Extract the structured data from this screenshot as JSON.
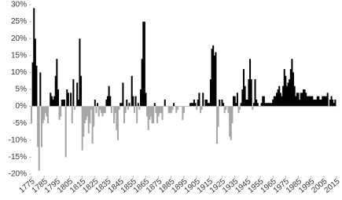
{
  "chart_data": {
    "type": "bar",
    "x": [
      1775,
      1776,
      1777,
      1778,
      1779,
      1780,
      1781,
      1782,
      1783,
      1784,
      1785,
      1786,
      1787,
      1788,
      1789,
      1790,
      1791,
      1792,
      1793,
      1794,
      1795,
      1796,
      1797,
      1798,
      1799,
      1800,
      1801,
      1802,
      1803,
      1804,
      1805,
      1806,
      1807,
      1808,
      1809,
      1810,
      1811,
      1812,
      1813,
      1814,
      1815,
      1816,
      1817,
      1818,
      1819,
      1820,
      1821,
      1822,
      1823,
      1824,
      1825,
      1826,
      1827,
      1828,
      1829,
      1830,
      1831,
      1832,
      1833,
      1834,
      1835,
      1836,
      1837,
      1838,
      1839,
      1840,
      1841,
      1842,
      1843,
      1844,
      1845,
      1846,
      1847,
      1848,
      1849,
      1850,
      1851,
      1852,
      1853,
      1854,
      1855,
      1856,
      1857,
      1858,
      1859,
      1860,
      1861,
      1862,
      1863,
      1864,
      1865,
      1866,
      1867,
      1868,
      1869,
      1870,
      1871,
      1872,
      1873,
      1874,
      1875,
      1876,
      1877,
      1878,
      1879,
      1880,
      1881,
      1882,
      1883,
      1884,
      1885,
      1886,
      1887,
      1888,
      1889,
      1890,
      1891,
      1892,
      1893,
      1894,
      1895,
      1896,
      1897,
      1898,
      1899,
      1900,
      1901,
      1902,
      1903,
      1904,
      1905,
      1906,
      1907,
      1908,
      1909,
      1910,
      1911,
      1912,
      1913,
      1914,
      1915,
      1916,
      1917,
      1918,
      1919,
      1920,
      1921,
      1922,
      1923,
      1924,
      1925,
      1926,
      1927,
      1928,
      1929,
      1930,
      1931,
      1932,
      1933,
      1934,
      1935,
      1936,
      1937,
      1938,
      1939,
      1940,
      1941,
      1942,
      1943,
      1944,
      1945,
      1946,
      1947,
      1948,
      1949,
      1950,
      1951,
      1952,
      1953,
      1954,
      1955,
      1956,
      1957,
      1958,
      1959,
      1960,
      1961,
      1962,
      1963,
      1964,
      1965,
      1966,
      1967,
      1968,
      1969,
      1970,
      1971,
      1972,
      1973,
      1974,
      1975,
      1976,
      1977,
      1978,
      1979,
      1980,
      1981,
      1982,
      1983,
      1984,
      1985,
      1986,
      1987,
      1988,
      1989,
      1990,
      1991,
      1992,
      1993,
      1994,
      1995,
      1996,
      1997,
      1998,
      1999,
      2000,
      2001,
      2002,
      2003,
      2004,
      2005,
      2006,
      2007,
      2008,
      2009,
      2010,
      2011,
      2012,
      2013,
      2014,
      2015
    ],
    "values": [
      -5,
      13,
      29,
      20,
      12,
      -12,
      -19,
      10,
      -12,
      -5,
      -4,
      -2,
      -3,
      -5,
      0,
      4,
      3,
      2,
      3,
      9,
      14,
      5,
      -4,
      -3,
      2,
      2,
      2,
      -15,
      5,
      4,
      0,
      4,
      -5,
      8,
      -1,
      0,
      7,
      2,
      20,
      9,
      -13,
      -9,
      -5,
      -4,
      -3,
      -8,
      -5,
      -1,
      -11,
      -6,
      2,
      -2,
      1,
      -3,
      -1,
      -2,
      -3,
      -2,
      -2,
      2,
      3,
      6,
      3,
      -2,
      0,
      -5,
      -2,
      -7,
      -10,
      -1,
      1,
      1,
      7,
      -5,
      -2,
      2,
      -1,
      1,
      0,
      9,
      3,
      -2,
      3,
      -5,
      1,
      -1,
      5,
      14,
      25,
      25,
      4,
      -3,
      -7,
      -4,
      -3,
      -5,
      -5,
      1,
      -2,
      -5,
      -3,
      -2,
      -2,
      -4,
      0,
      2,
      0,
      0,
      -2,
      -2,
      -2,
      -1,
      1,
      0,
      -2,
      -1,
      0,
      0,
      0,
      -4,
      -2,
      0,
      0,
      0,
      0,
      1,
      1,
      1,
      2,
      1,
      -1,
      2,
      4,
      -2,
      -1,
      4,
      0,
      2,
      2,
      1,
      1,
      8,
      17,
      18,
      15,
      16,
      -11,
      -6,
      2,
      0,
      2,
      1,
      -2,
      -1,
      0,
      -2,
      -9,
      -10,
      -5,
      3,
      3,
      1,
      4,
      -2,
      -1,
      1,
      5,
      11,
      6,
      2,
      2,
      8,
      14,
      8,
      -1,
      1,
      8,
      2,
      1,
      0,
      0,
      1,
      3,
      3,
      1,
      1,
      1,
      1,
      1,
      1,
      2,
      3,
      3,
      4,
      5,
      6,
      4,
      3,
      6,
      11,
      9,
      6,
      7,
      8,
      11,
      14,
      10,
      6,
      3,
      4,
      4,
      2,
      4,
      4,
      5,
      5,
      4,
      3,
      3,
      3,
      3,
      3,
      2,
      2,
      2,
      3,
      3,
      2,
      2,
      3,
      3,
      3,
      3,
      4,
      0,
      2,
      3,
      2,
      1,
      2,
      0
    ],
    "color": "#000000",
    "negative_color": "#a6a6a6",
    "xlim": [
      1775,
      2015
    ],
    "xticks": [
      1775,
      1785,
      1795,
      1805,
      1815,
      1825,
      1835,
      1845,
      1855,
      1865,
      1875,
      1885,
      1895,
      1905,
      1915,
      1925,
      1935,
      1945,
      1955,
      1965,
      1975,
      1985,
      1995,
      2005,
      2015
    ],
    "ylim": [
      -20,
      30
    ],
    "yticks": [
      {
        "value": 30,
        "label": "30%"
      },
      {
        "value": 25,
        "label": "25%"
      },
      {
        "value": 20,
        "label": "20%"
      },
      {
        "value": 15,
        "label": "15%"
      },
      {
        "value": 10,
        "label": "10%"
      },
      {
        "value": 5,
        "label": "5%"
      },
      {
        "value": 0,
        "label": "0%"
      },
      {
        "value": -5,
        "label": "-5%"
      },
      {
        "value": -10,
        "label": "-10%"
      },
      {
        "value": -15,
        "label": "-15%"
      },
      {
        "value": -20,
        "label": "-20%"
      }
    ]
  }
}
